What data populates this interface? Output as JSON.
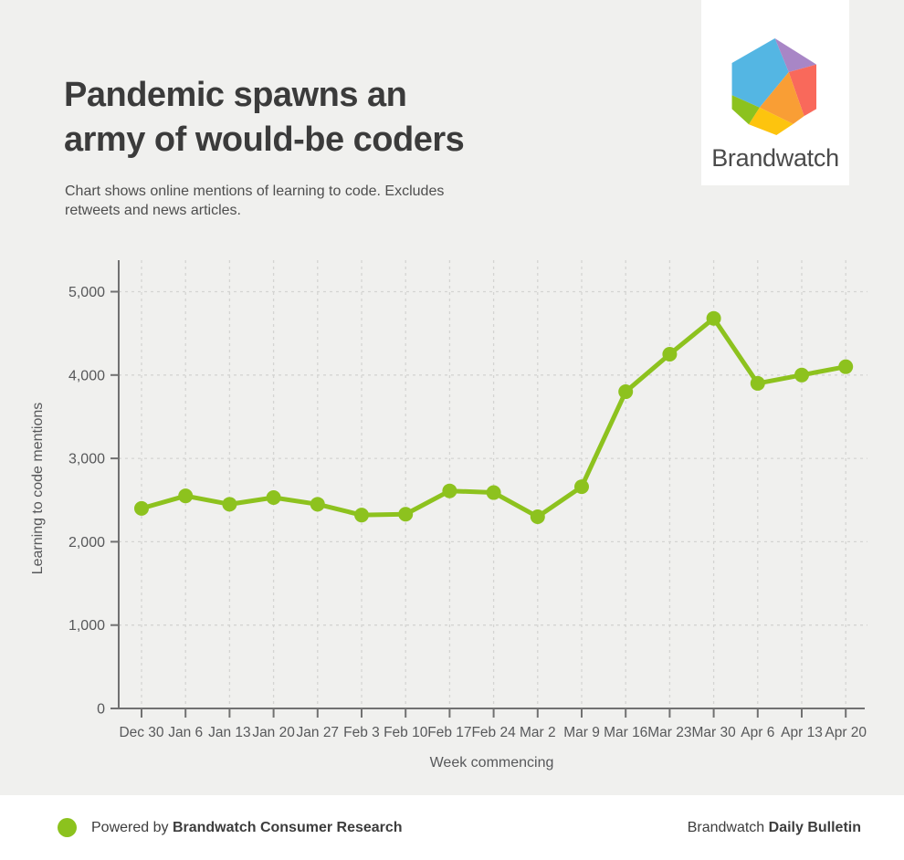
{
  "header": {
    "title_lines": [
      "Pandemic spawns an",
      "army of would-be coders"
    ],
    "subtitle_lines": [
      "Chart shows online mentions of learning to code. Excludes",
      "retweets and news articles."
    ]
  },
  "logo": {
    "brand_name": "Brandwatch",
    "hexagon_colors": {
      "blue": "#54b6e3",
      "purple": "#a886c6",
      "coral": "#f9695b",
      "orange": "#f99e35",
      "yellow": "#fdc40e",
      "green": "#8cc21e"
    }
  },
  "chart_data": {
    "type": "line",
    "title": "Pandemic spawns an army of would-be coders",
    "xlabel": "Week commencing",
    "ylabel": "Learning to code mentions",
    "categories": [
      "Dec 30",
      "Jan 6",
      "Jan 13",
      "Jan 20",
      "Jan 27",
      "Feb 3",
      "Feb 10",
      "Feb 17",
      "Feb 24",
      "Mar 2",
      "Mar 9",
      "Mar 16",
      "Mar 23",
      "Mar 30",
      "Apr 6",
      "Apr 13",
      "Apr 20"
    ],
    "values": [
      2400,
      2550,
      2450,
      2530,
      2450,
      2320,
      2330,
      2610,
      2590,
      2300,
      2660,
      3800,
      4250,
      4680,
      3900,
      4000,
      4100
    ],
    "ylim": [
      0,
      5000
    ],
    "ytick_step": 1000,
    "ytick_labels": [
      "0",
      "1,000",
      "2,000",
      "3,000",
      "4,000",
      "5,000"
    ],
    "grid": "dashed",
    "legend": "none",
    "line_color": "#8dc21e",
    "axis_color": "#717171",
    "grid_color": "#d4d4d2"
  },
  "footer": {
    "powered_by_prefix": "Powered by ",
    "powered_by_bold": "Brandwatch Consumer Research",
    "right_prefix": "Brandwatch ",
    "right_bold": "Daily Bulletin",
    "dot_color": "#8cc21e"
  }
}
